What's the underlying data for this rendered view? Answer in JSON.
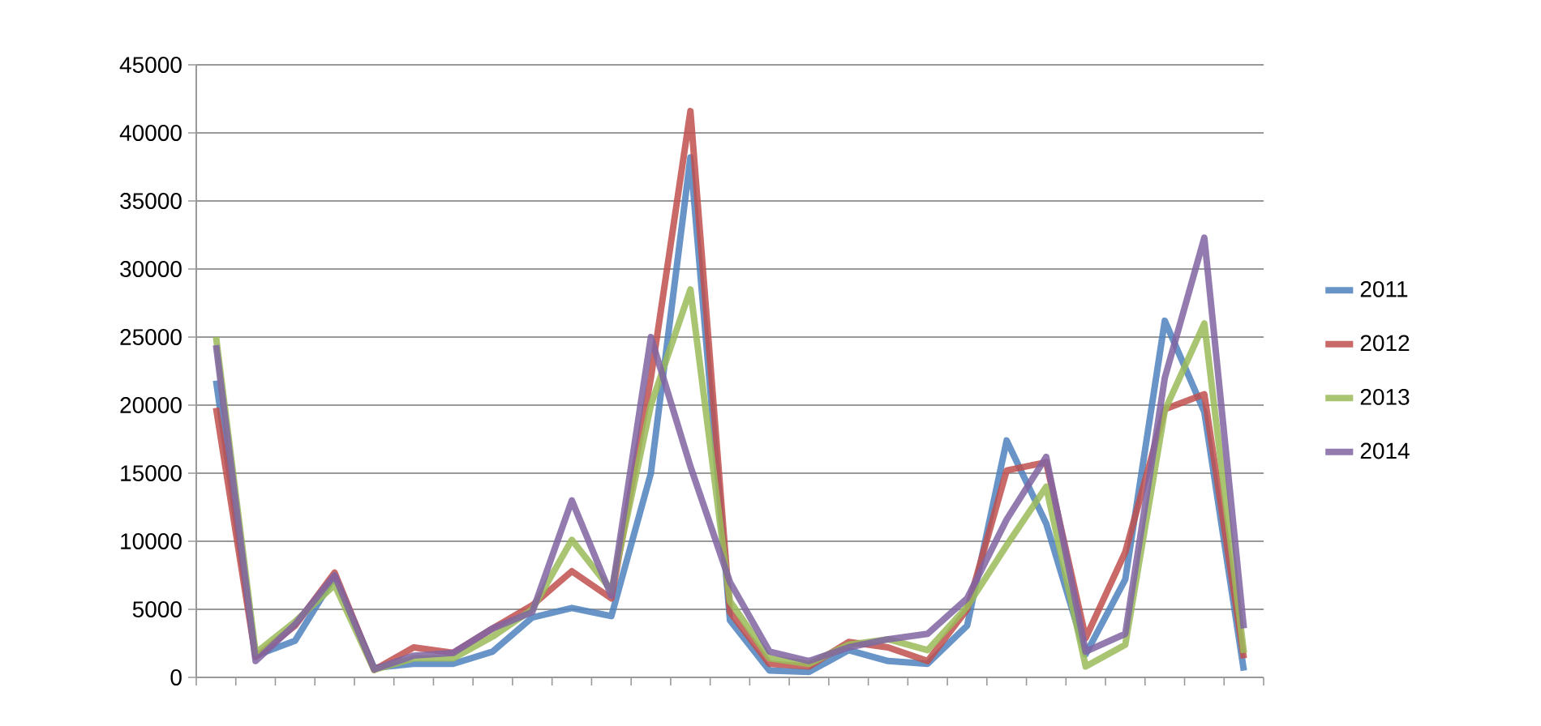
{
  "chart_data": {
    "type": "line",
    "categories": [
      null,
      null,
      null,
      null,
      null,
      null,
      null,
      null,
      null,
      null,
      null,
      null,
      null,
      null,
      null,
      null,
      null,
      null,
      null,
      null,
      null,
      null,
      null,
      null,
      null,
      null,
      null
    ],
    "series": [
      {
        "name": "2011",
        "color": "#4f81bd",
        "values": [
          21800,
          1600,
          2700,
          7400,
          700,
          1000,
          1000,
          1900,
          4400,
          5100,
          4500,
          15000,
          38200,
          4200,
          500,
          400,
          2000,
          1200,
          1000,
          3800,
          17400,
          11300,
          1700,
          7200,
          26200,
          19500,
          500
        ]
      },
      {
        "name": "2012",
        "color": "#c0504d",
        "values": [
          19800,
          1500,
          3800,
          7700,
          550,
          2200,
          1800,
          3600,
          5300,
          7800,
          5800,
          22000,
          41600,
          4800,
          1000,
          800,
          2600,
          2200,
          1200,
          5000,
          15200,
          15800,
          2900,
          9200,
          19700,
          20800,
          1400
        ]
      },
      {
        "name": "2013",
        "color": "#9bbb59",
        "values": [
          25000,
          1800,
          4100,
          6800,
          550,
          1400,
          1400,
          3000,
          5000,
          10100,
          6400,
          20000,
          28500,
          5600,
          1400,
          1000,
          2400,
          2800,
          2000,
          5200,
          9700,
          14000,
          800,
          2400,
          19600,
          26000,
          1800
        ]
      },
      {
        "name": "2014",
        "color": "#8064a2",
        "values": [
          24400,
          1200,
          3900,
          7500,
          600,
          1600,
          1800,
          3600,
          4800,
          13000,
          6000,
          25000,
          15500,
          7000,
          1900,
          1200,
          2200,
          2800,
          3200,
          5800,
          11600,
          16200,
          1900,
          3200,
          22000,
          32300,
          3600
        ]
      }
    ],
    "ylim": [
      0,
      45000
    ],
    "yticks": [
      0,
      5000,
      10000,
      15000,
      20000,
      25000,
      30000,
      35000,
      40000,
      45000
    ],
    "grid": "y",
    "legend": "right",
    "marker": "none",
    "line_style": "solid"
  }
}
